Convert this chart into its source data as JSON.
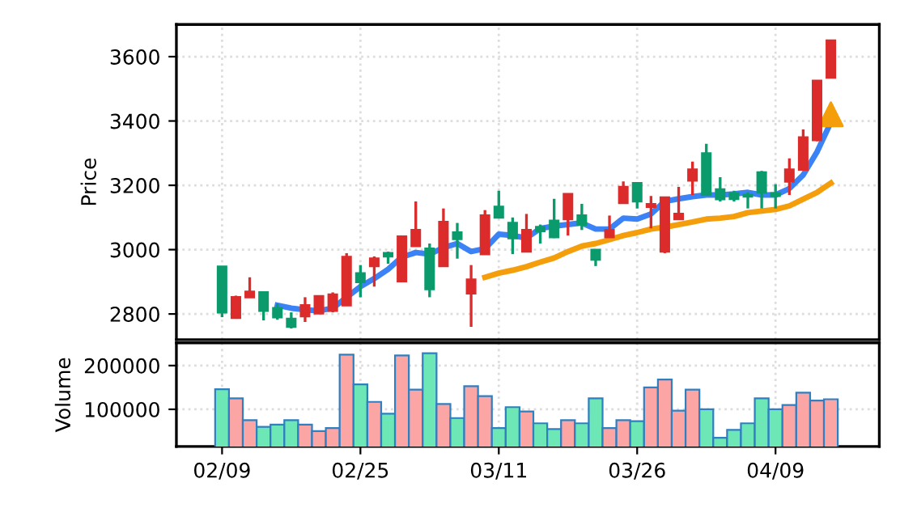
{
  "chart_data": [
    {
      "type": "candlestick",
      "ylabel": "Price",
      "ohlc": [
        [
          2947,
          2947,
          2790,
          2805
        ],
        [
          2788,
          2857,
          2785,
          2852
        ],
        [
          2852,
          2914,
          2852,
          2869
        ],
        [
          2867,
          2867,
          2780,
          2810
        ],
        [
          2818,
          2832,
          2782,
          2790
        ],
        [
          2785,
          2805,
          2755,
          2760
        ],
        [
          2793,
          2852,
          2775,
          2827
        ],
        [
          2802,
          2855,
          2800,
          2855
        ],
        [
          2810,
          2867,
          2805,
          2860
        ],
        [
          2827,
          2989,
          2827,
          2977
        ],
        [
          2926,
          2952,
          2852,
          2899
        ],
        [
          2949,
          2979,
          2885,
          2972
        ],
        [
          2989,
          2994,
          2956,
          2979
        ],
        [
          2902,
          3041,
          2902,
          3041
        ],
        [
          3011,
          3150,
          3011,
          3061
        ],
        [
          3003,
          3019,
          2852,
          2877
        ],
        [
          2949,
          3128,
          2949,
          3086
        ],
        [
          3053,
          3083,
          2972,
          3033
        ],
        [
          2864,
          2952,
          2760,
          2907
        ],
        [
          2986,
          3123,
          2986,
          3106
        ],
        [
          3133,
          3183,
          3100,
          3100
        ],
        [
          3083,
          3100,
          2986,
          3036
        ],
        [
          2994,
          3111,
          2994,
          3061
        ],
        [
          3070,
          3078,
          3019,
          3058
        ],
        [
          3090,
          3158,
          3036,
          3039
        ],
        [
          3095,
          3173,
          3044,
          3173
        ],
        [
          3106,
          3142,
          3061,
          3078
        ],
        [
          2999,
          2999,
          2949,
          2969
        ],
        [
          3039,
          3106,
          3039,
          3061
        ],
        [
          3145,
          3212,
          3145,
          3195
        ],
        [
          3207,
          3207,
          3128,
          3150
        ],
        [
          3133,
          3167,
          3066,
          3141
        ],
        [
          2994,
          3162,
          2989,
          3162
        ],
        [
          3095,
          3195,
          3095,
          3111
        ],
        [
          3215,
          3274,
          3170,
          3249
        ],
        [
          3299,
          3329,
          3170,
          3170
        ],
        [
          3187,
          3225,
          3150,
          3157
        ],
        [
          3175,
          3183,
          3150,
          3158
        ],
        [
          3170,
          3178,
          3128,
          3165
        ],
        [
          3240,
          3245,
          3128,
          3178
        ],
        [
          3175,
          3203,
          3128,
          3167
        ],
        [
          3212,
          3284,
          3170,
          3249
        ],
        [
          3249,
          3374,
          3249,
          3349
        ],
        [
          3341,
          3525,
          3337,
          3525
        ],
        [
          3535,
          3650,
          3535,
          3650
        ]
      ],
      "colors": [
        "#0a9a6c",
        "#dc2b2b",
        "#dc2b2b",
        "#0a9a6c",
        "#0a9a6c",
        "#0a9a6c",
        "#dc2b2b",
        "#dc2b2b",
        "#dc2b2b",
        "#dc2b2b",
        "#0a9a6c",
        "#dc2b2b",
        "#0a9a6c",
        "#dc2b2b",
        "#dc2b2b",
        "#0a9a6c",
        "#dc2b2b",
        "#0a9a6c",
        "#dc2b2b",
        "#dc2b2b",
        "#0a9a6c",
        "#0a9a6c",
        "#dc2b2b",
        "#0a9a6c",
        "#0a9a6c",
        "#dc2b2b",
        "#0a9a6c",
        "#0a9a6c",
        "#dc2b2b",
        "#dc2b2b",
        "#0a9a6c",
        "#dc2b2b",
        "#dc2b2b",
        "#dc2b2b",
        "#dc2b2b",
        "#0a9a6c",
        "#0a9a6c",
        "#0a9a6c",
        "#0a9a6c",
        "#0a9a6c",
        "#0a9a6c",
        "#dc2b2b",
        "#dc2b2b",
        "#dc2b2b",
        "#dc2b2b"
      ],
      "series": [
        {
          "type": "line",
          "color": "#3b82f6",
          "values": [
            null,
            null,
            null,
            null,
            2827,
            2818,
            2813,
            2810,
            2818,
            2852,
            2885,
            2910,
            2939,
            2977,
            2991,
            2986,
            3006,
            3019,
            2994,
            3003,
            3048,
            3044,
            3036,
            3066,
            3073,
            3078,
            3083,
            3064,
            3064,
            3098,
            3095,
            3111,
            3150,
            3158,
            3165,
            3170,
            3170,
            3173,
            3178,
            3170,
            3170,
            3190,
            3232,
            3304,
            3396
          ]
        },
        {
          "type": "line",
          "color": "#f59e0b",
          "values": [
            null,
            null,
            null,
            null,
            null,
            null,
            null,
            null,
            null,
            null,
            null,
            null,
            null,
            null,
            null,
            null,
            null,
            null,
            null,
            2914,
            2927,
            2936,
            2947,
            2961,
            2974,
            2994,
            3011,
            3019,
            3031,
            3044,
            3053,
            3064,
            3070,
            3078,
            3086,
            3095,
            3098,
            3103,
            3115,
            3120,
            3125,
            3136,
            3157,
            3178,
            3207
          ]
        },
        {
          "type": "scatter",
          "marker": "triangle",
          "color": "#f59e0b",
          "values": [
            null,
            null,
            null,
            null,
            null,
            null,
            null,
            null,
            null,
            null,
            null,
            null,
            null,
            null,
            null,
            null,
            null,
            null,
            null,
            null,
            null,
            null,
            null,
            null,
            null,
            null,
            null,
            null,
            null,
            null,
            null,
            null,
            null,
            null,
            null,
            null,
            null,
            null,
            null,
            null,
            null,
            null,
            null,
            null,
            3421
          ]
        }
      ],
      "ylim": [
        2720,
        3700
      ],
      "yticks": [
        2800,
        3000,
        3200,
        3400,
        3600
      ],
      "grid": true,
      "tick_labels": "y"
    },
    {
      "type": "bar",
      "ylabel": "Volume",
      "categories": [
        "02/09",
        null,
        null,
        null,
        null,
        null,
        null,
        null,
        null,
        null,
        "02/25",
        null,
        null,
        null,
        null,
        null,
        null,
        null,
        null,
        null,
        "03/11",
        null,
        null,
        null,
        null,
        null,
        null,
        null,
        null,
        null,
        "03/26",
        null,
        null,
        null,
        null,
        null,
        null,
        null,
        null,
        null,
        "04/09",
        null,
        null,
        null,
        null
      ],
      "values": [
        146000,
        125000,
        75000,
        60000,
        65000,
        75000,
        65000,
        50000,
        57000,
        225000,
        157000,
        117000,
        90000,
        223000,
        145000,
        228000,
        112000,
        80000,
        153000,
        130000,
        57000,
        105000,
        95000,
        68000,
        55000,
        75000,
        68000,
        125000,
        57000,
        75000,
        73000,
        150000,
        168000,
        97000,
        145000,
        100000,
        35000,
        53000,
        68000,
        125000,
        100000,
        110000,
        138000,
        120000,
        123000
      ],
      "colors": [
        "#6ee7b7",
        "#fca5a5",
        "#fca5a5",
        "#6ee7b7",
        "#6ee7b7",
        "#6ee7b7",
        "#fca5a5",
        "#fca5a5",
        "#fca5a5",
        "#fca5a5",
        "#6ee7b7",
        "#fca5a5",
        "#6ee7b7",
        "#fca5a5",
        "#fca5a5",
        "#6ee7b7",
        "#fca5a5",
        "#6ee7b7",
        "#fca5a5",
        "#fca5a5",
        "#6ee7b7",
        "#6ee7b7",
        "#fca5a5",
        "#6ee7b7",
        "#6ee7b7",
        "#fca5a5",
        "#6ee7b7",
        "#6ee7b7",
        "#fca5a5",
        "#fca5a5",
        "#6ee7b7",
        "#fca5a5",
        "#fca5a5",
        "#fca5a5",
        "#fca5a5",
        "#6ee7b7",
        "#6ee7b7",
        "#6ee7b7",
        "#6ee7b7",
        "#6ee7b7",
        "#6ee7b7",
        "#fca5a5",
        "#fca5a5",
        "#fca5a5",
        "#fca5a5"
      ],
      "ylim": [
        15000,
        252000
      ],
      "yticks": [
        100000,
        200000
      ],
      "grid": true
    }
  ]
}
